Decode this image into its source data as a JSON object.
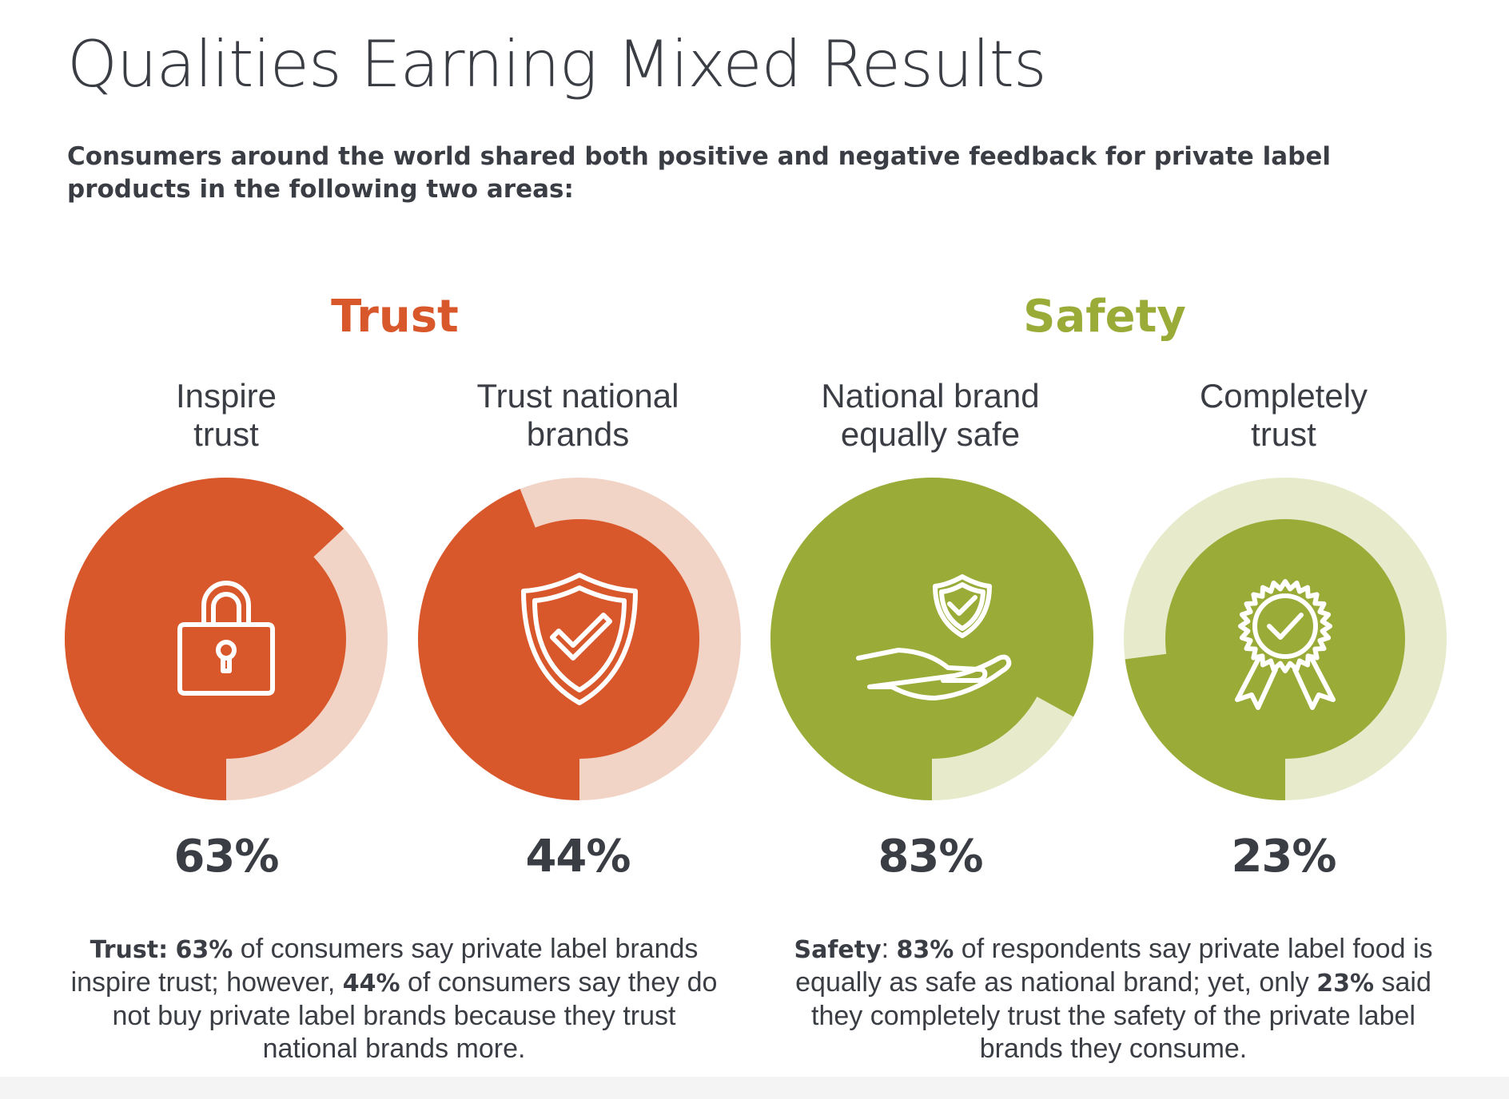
{
  "page": {
    "title": "Qualities Earning Mixed Results",
    "subtitle": "Consumers around the world shared both positive and negative feedback for private label products in the following two areas:"
  },
  "sections": [
    {
      "title": "Trust",
      "color": "#d9582b"
    },
    {
      "title": "Safety",
      "color": "#9aab38"
    }
  ],
  "chart_data": {
    "type": "donut",
    "title": "Qualities Earning Mixed Results",
    "items": [
      {
        "label_line1": "Inspire",
        "label_line2": "trust",
        "value": 63,
        "display": "63%",
        "section": "Trust",
        "icon": "lock-icon",
        "color": "#d9582b",
        "track_color": "#f2d4c6"
      },
      {
        "label_line1": "Trust national",
        "label_line2": "brands",
        "value": 44,
        "display": "44%",
        "section": "Trust",
        "icon": "shield-check-icon",
        "color": "#d9582b",
        "track_color": "#f2d4c6"
      },
      {
        "label_line1": "National brand",
        "label_line2": "equally safe",
        "value": 83,
        "display": "83%",
        "section": "Safety",
        "icon": "hand-shield-icon",
        "color": "#9aab38",
        "track_color": "#e7ebcb"
      },
      {
        "label_line1": "Completely",
        "label_line2": "trust",
        "value": 23,
        "display": "23%",
        "section": "Safety",
        "icon": "award-ribbon-icon",
        "color": "#9aab38",
        "track_color": "#e7ebcb"
      }
    ]
  },
  "footnotes": {
    "trust": {
      "lead": "Trust:",
      "p1": "63%",
      "t1": " of consumers say private label brands inspire trust; however, ",
      "p2": "44%",
      "t2": " of consumers say they do not buy private label brands because they trust national brands more."
    },
    "safety": {
      "lead": "Safety",
      "colon": ": ",
      "p1": "83%",
      "t1": " of respondents say private label food is equally as safe as national brand; yet, only ",
      "p2": "23%",
      "t2": " said they completely trust the safety of the private label brands they consume."
    }
  }
}
